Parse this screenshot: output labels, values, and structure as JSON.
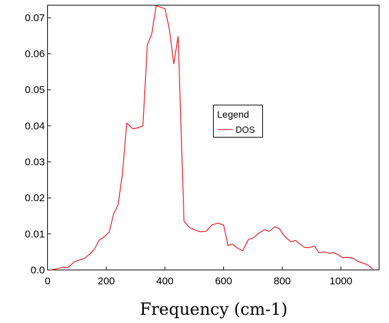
{
  "chart_data": {
    "type": "line",
    "title": "",
    "xlabel": "Frequency (cm-1)",
    "ylabel": "",
    "xlim": [
      0,
      1130
    ],
    "ylim": [
      0,
      0.0735
    ],
    "x_ticks": [
      0,
      200,
      400,
      600,
      800,
      1000
    ],
    "x_tick_labels": [
      "0",
      "200",
      "400",
      "600",
      "800",
      "1000"
    ],
    "y_ticks": [
      0,
      0.01,
      0.02,
      0.03,
      0.04,
      0.05,
      0.06,
      0.07
    ],
    "y_tick_labels": [
      "0.0",
      "0.01",
      "0.02",
      "0.03",
      "0.04",
      "0.05",
      "0.06",
      "0.07"
    ],
    "grid": false,
    "legend": {
      "title": "Legend",
      "placement": "center-right"
    },
    "series": [
      {
        "name": "DOS",
        "color": "#e8141c",
        "x": [
          10,
          25,
          45,
          55,
          70,
          90,
          105,
          125,
          145,
          160,
          175,
          195,
          210,
          225,
          240,
          255,
          270,
          290,
          305,
          325,
          340,
          355,
          370,
          390,
          400,
          415,
          430,
          445,
          465,
          485,
          500,
          520,
          540,
          560,
          580,
          600,
          615,
          630,
          645,
          665,
          685,
          700,
          720,
          740,
          755,
          775,
          790,
          800,
          815,
          830,
          845,
          860,
          875,
          890,
          910,
          925,
          945,
          960,
          975,
          990,
          1005,
          1020,
          1040,
          1060,
          1080,
          1095,
          1110
        ],
        "y": [
          0.0,
          0.0002,
          0.0006,
          0.0008,
          0.0007,
          0.0022,
          0.0027,
          0.0032,
          0.0045,
          0.0058,
          0.0082,
          0.0093,
          0.0105,
          0.0155,
          0.018,
          0.0265,
          0.0408,
          0.0392,
          0.0394,
          0.04,
          0.0625,
          0.0655,
          0.0733,
          0.0728,
          0.0725,
          0.0668,
          0.0572,
          0.0648,
          0.0135,
          0.0117,
          0.0112,
          0.0106,
          0.0107,
          0.0125,
          0.013,
          0.0125,
          0.0068,
          0.0072,
          0.0062,
          0.0053,
          0.0085,
          0.0088,
          0.0102,
          0.0112,
          0.0107,
          0.012,
          0.0115,
          0.0102,
          0.0088,
          0.0078,
          0.0082,
          0.0072,
          0.0063,
          0.0062,
          0.0066,
          0.0048,
          0.005,
          0.0046,
          0.0048,
          0.0043,
          0.0034,
          0.0035,
          0.0033,
          0.0023,
          0.0018,
          0.0012,
          0.0002
        ]
      }
    ]
  }
}
